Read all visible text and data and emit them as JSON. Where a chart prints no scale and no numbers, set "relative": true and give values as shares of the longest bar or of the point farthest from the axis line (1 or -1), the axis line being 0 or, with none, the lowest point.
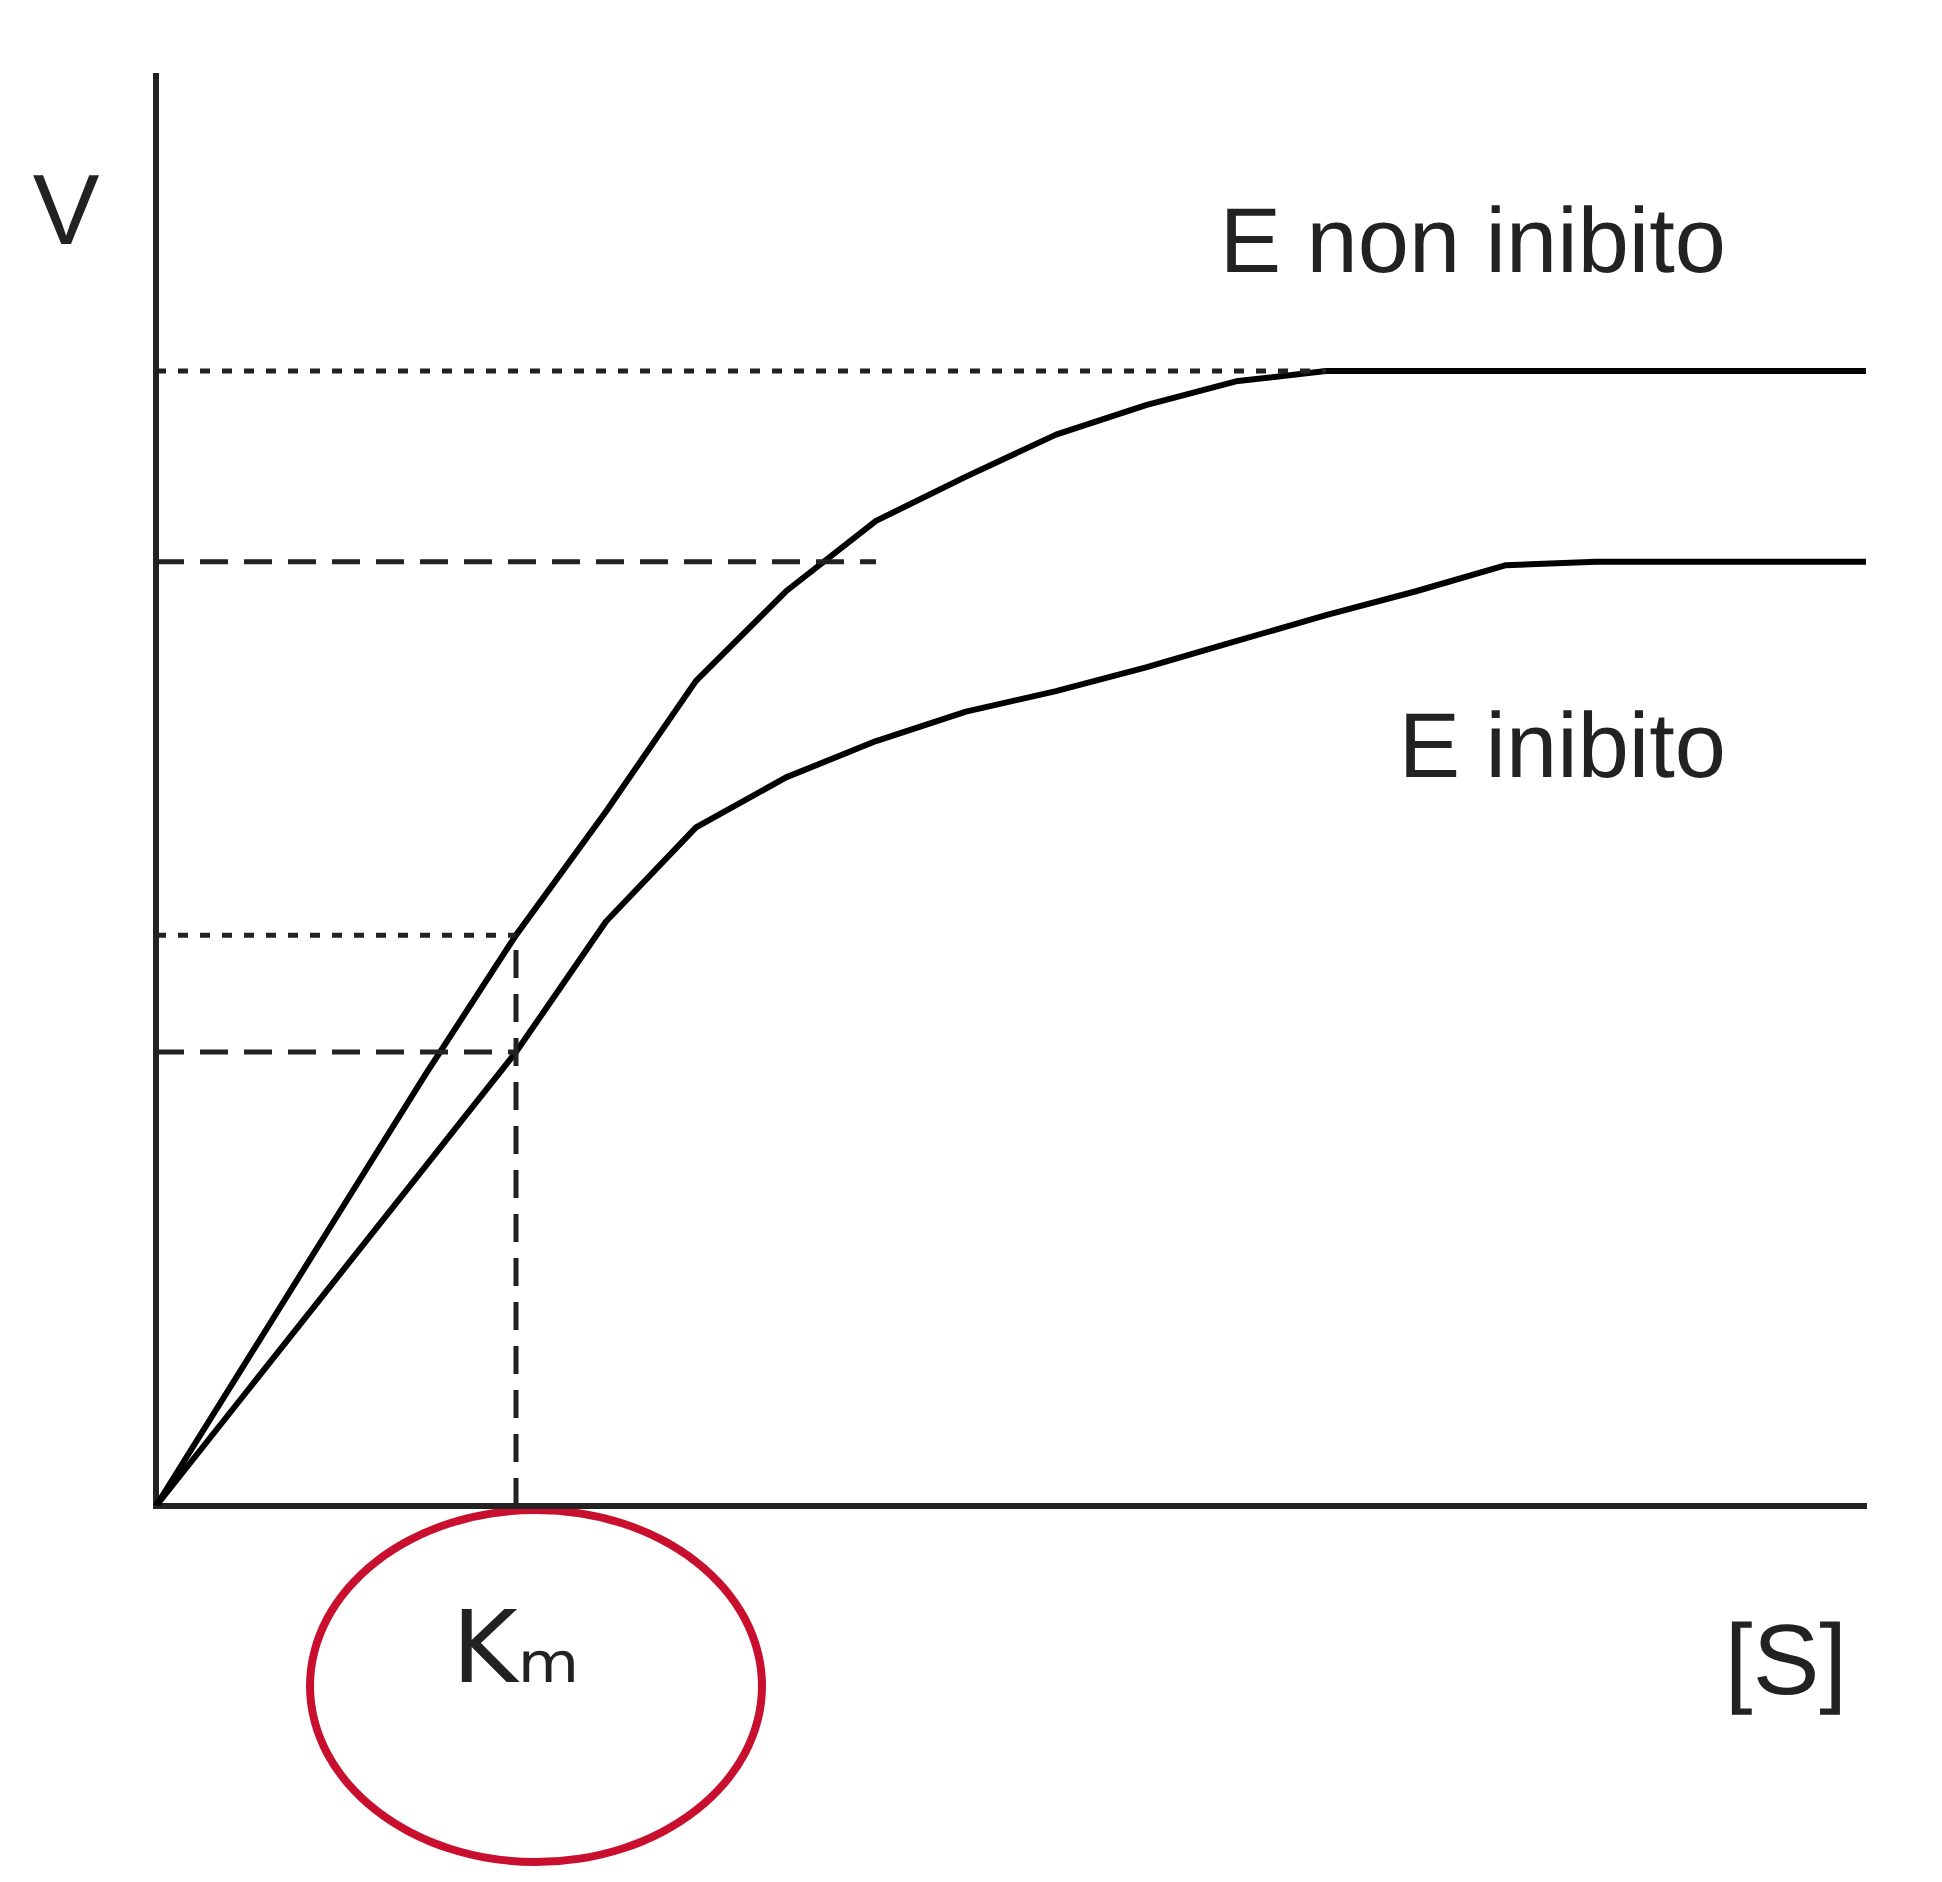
{
  "chart_data": {
    "type": "line",
    "relative": true,
    "xlabel": "[S]",
    "ylabel": "V",
    "legend": false,
    "grid": false,
    "categories": [
      null,
      null,
      null,
      null,
      null,
      null,
      null,
      null,
      null,
      null,
      null,
      null,
      null,
      null,
      null,
      null,
      null,
      null,
      null,
      null
    ],
    "annotations": [
      "Kₘ"
    ],
    "series": [
      {
        "name": "E non inibito",
        "color": "#000000",
        "values": [
          0,
          0.127,
          0.254,
          0.381,
          0.503,
          0.612,
          0.727,
          0.806,
          0.868,
          0.907,
          0.944,
          0.97,
          0.991,
          1,
          1,
          1,
          1,
          1,
          1,
          1
        ]
      },
      {
        "name": "E inibito",
        "color": "#000000",
        "values": [
          0,
          0.1,
          0.2,
          0.3,
          0.4,
          0.515,
          0.598,
          0.642,
          0.674,
          0.7,
          0.718,
          0.739,
          0.762,
          0.785,
          0.806,
          0.829,
          0.832,
          0.832,
          0.832,
          0.832
        ]
      }
    ],
    "ref_lines": [
      {
        "axis": "y",
        "value": 1,
        "line_style": "dotted"
      },
      {
        "axis": "y",
        "value": 0.832,
        "line_style": "dashed"
      },
      {
        "axis": "y",
        "value": 0.503,
        "line_style": "dotted"
      },
      {
        "axis": "y",
        "value": 0.4,
        "line_style": "dashed"
      }
    ]
  }
}
